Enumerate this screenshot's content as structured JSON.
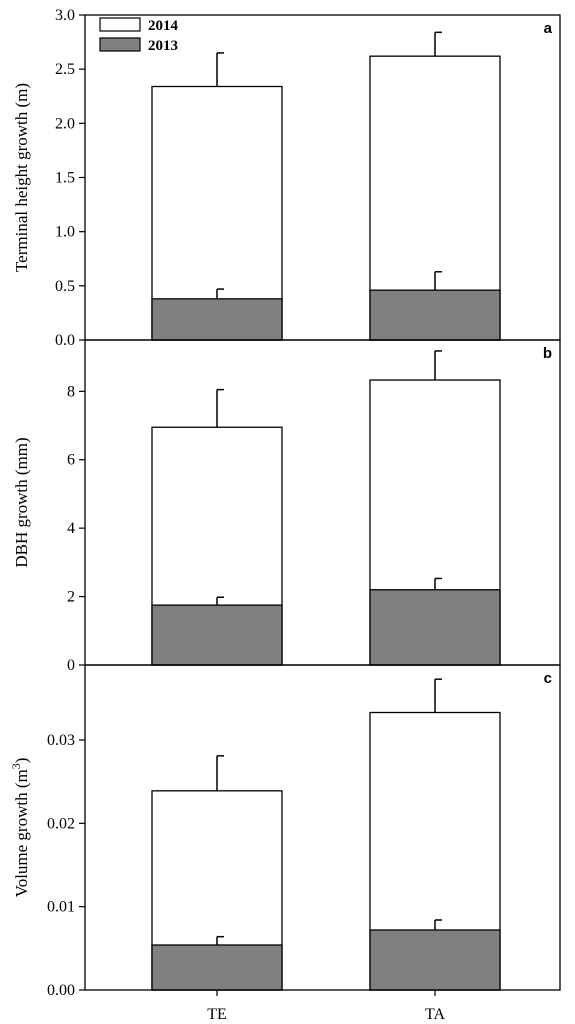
{
  "chart_data": {
    "type": "bar",
    "stacked": true,
    "categories": [
      "TE",
      "TA"
    ],
    "legend": {
      "placement": "top-left",
      "entries": [
        {
          "label": "2014",
          "color": "#ffffff"
        },
        {
          "label": "2013",
          "color": "#808080"
        }
      ]
    },
    "panels": [
      {
        "letter": "a",
        "ylabel": "Terminal height growth (m)",
        "ylabel_sup": "",
        "ylabel_suffix": "",
        "ylim": [
          0,
          3.0
        ],
        "yticks": [
          0,
          0.5,
          1.0,
          1.5,
          2.0,
          2.5,
          3.0
        ],
        "ytick_labels": [
          "0.0",
          "0.5",
          "1.0",
          "1.5",
          "2.0",
          "2.5",
          "3.0"
        ],
        "series": [
          {
            "name": "2013",
            "values": [
              0.38,
              0.46
            ],
            "errors": [
              0.09,
              0.17
            ]
          },
          {
            "name": "2014",
            "totals": [
              2.34,
              2.62
            ],
            "errors": [
              0.31,
              0.22
            ]
          }
        ]
      },
      {
        "letter": "b",
        "ylabel": "DBH growth (mm)",
        "ylabel_sup": "",
        "ylabel_suffix": "",
        "ylim": [
          0,
          9.5
        ],
        "yticks": [
          0,
          2,
          4,
          6,
          8
        ],
        "ytick_labels": [
          "0",
          "2",
          "4",
          "6",
          "8"
        ],
        "series": [
          {
            "name": "2013",
            "values": [
              1.75,
              2.2
            ],
            "errors": [
              0.23,
              0.33
            ]
          },
          {
            "name": "2014",
            "totals": [
              6.95,
              8.33
            ],
            "errors": [
              1.1,
              0.85
            ]
          }
        ]
      },
      {
        "letter": "c",
        "ylabel": "Volume growth (m",
        "ylabel_sup": "3",
        "ylabel_suffix": ")",
        "ylim": [
          0,
          0.039
        ],
        "yticks": [
          0,
          0.01,
          0.02,
          0.03
        ],
        "ytick_labels": [
          "0.00",
          "0.01",
          "0.02",
          "0.03"
        ],
        "series": [
          {
            "name": "2013",
            "values": [
              0.0054,
              0.0072
            ],
            "errors": [
              0.001,
              0.0012
            ]
          },
          {
            "name": "2014",
            "totals": [
              0.0239,
              0.0333
            ],
            "errors": [
              0.0042,
              0.004
            ]
          }
        ]
      }
    ]
  }
}
